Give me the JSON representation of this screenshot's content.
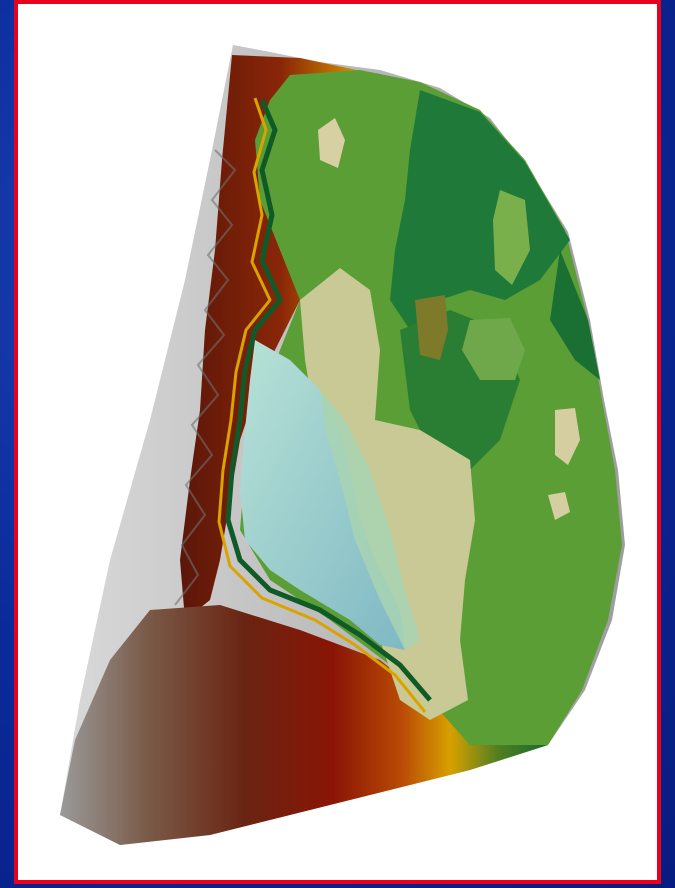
{
  "figure": {
    "palette": {
      "slide_bg": "#0b2a9a",
      "frame_border": "#e8001c",
      "frame_fill": "#ffffff",
      "lowland_green": "#5a9e35",
      "forest_green": "#1f7a3a",
      "pale_tan": "#c9c996",
      "water_blue": "#8ec6c6",
      "ridge_brown": "#6b1a0c",
      "ridge_orange": "#d08a00",
      "slope_gray": "#bdbdbd"
    }
  }
}
